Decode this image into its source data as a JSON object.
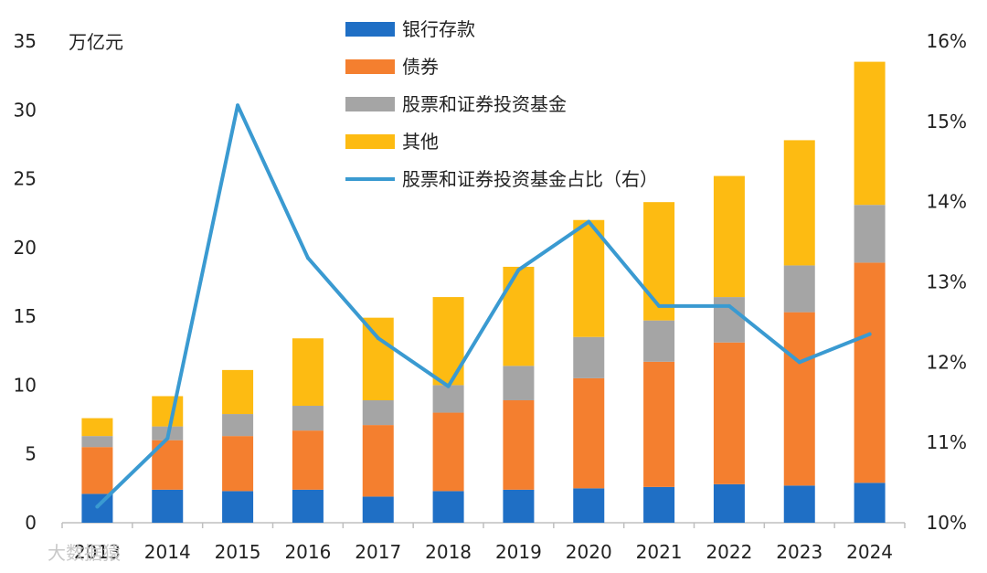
{
  "chart_data": {
    "type": "bar",
    "stacked": true,
    "categories": [
      "2013",
      "2014",
      "2015",
      "2016",
      "2017",
      "2018",
      "2019",
      "2020",
      "2021",
      "2022",
      "2023",
      "2024"
    ],
    "series": [
      {
        "name": "银行存款",
        "color": "#1f6fc5",
        "values": [
          2.1,
          2.4,
          2.3,
          2.4,
          1.9,
          2.3,
          2.4,
          2.5,
          2.6,
          2.8,
          2.7,
          2.9
        ]
      },
      {
        "name": "债券",
        "color": "#f47f2f",
        "values": [
          3.4,
          3.6,
          4.0,
          4.3,
          5.2,
          5.7,
          6.5,
          8.0,
          9.1,
          10.3,
          12.6,
          16.0
        ]
      },
      {
        "name": "股票和证券投资基金",
        "color": "#a5a5a5",
        "values": [
          0.8,
          1.0,
          1.6,
          1.8,
          1.8,
          2.0,
          2.5,
          3.0,
          3.0,
          3.3,
          3.4,
          4.2
        ]
      },
      {
        "name": "其他",
        "color": "#fdbb12",
        "values": [
          1.3,
          2.2,
          3.2,
          4.9,
          6.0,
          6.4,
          7.2,
          8.5,
          8.6,
          8.8,
          9.1,
          10.4
        ]
      }
    ],
    "line_series": {
      "name": "股票和证券投资基金占比（右）",
      "color": "#3a9ad1",
      "axis": "right",
      "values": [
        10.2,
        11.05,
        15.2,
        13.3,
        12.3,
        11.7,
        13.15,
        13.75,
        12.7,
        12.7,
        12.0,
        12.35
      ]
    },
    "y_left": {
      "unit_label": "万亿元",
      "min": 0,
      "max": 35,
      "ticks": [
        0,
        5,
        10,
        15,
        20,
        25,
        30,
        35
      ]
    },
    "y_right": {
      "min": 10,
      "max": 16,
      "ticks": [
        "10%",
        "11%",
        "12%",
        "13%",
        "14%",
        "15%",
        "16%"
      ]
    },
    "legend_position": "top-center",
    "grid": false
  },
  "watermark": "大数据猿"
}
